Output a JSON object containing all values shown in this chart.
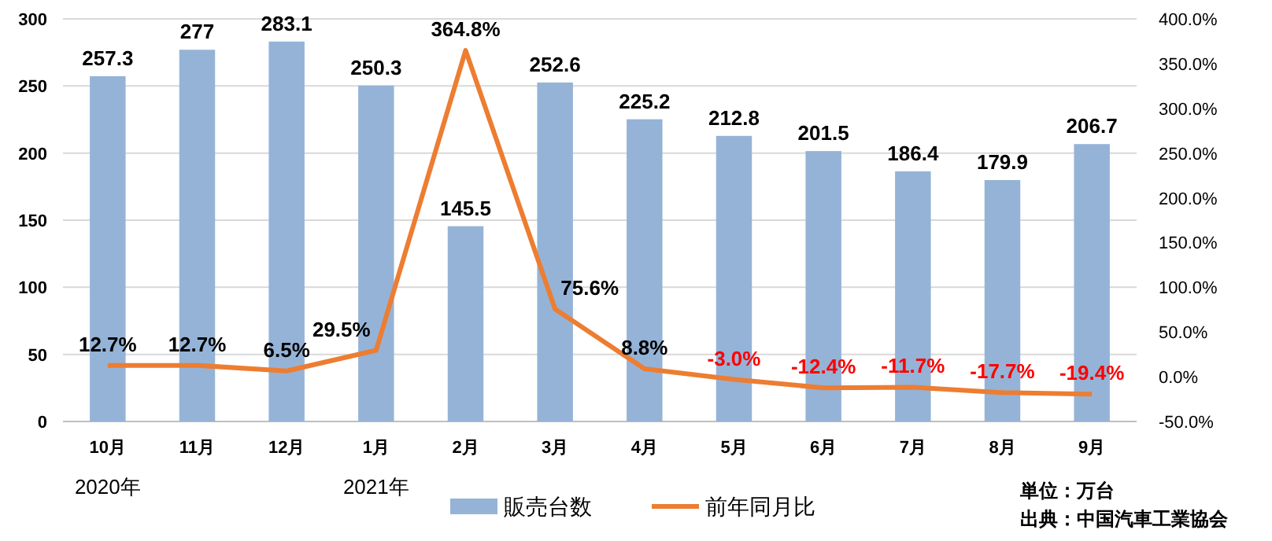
{
  "chart_data": {
    "type": "bar",
    "categories": [
      "10月",
      "11月",
      "12月",
      "1月",
      "2月",
      "3月",
      "4月",
      "5月",
      "6月",
      "7月",
      "8月",
      "9月"
    ],
    "series": [
      {
        "name": "販売台数",
        "color": "#95b3d7",
        "values": [
          257.3,
          277,
          283.1,
          250.3,
          145.5,
          252.6,
          225.2,
          212.8,
          201.5,
          186.4,
          179.9,
          206.7
        ],
        "value_labels": [
          "257.3",
          "277",
          "283.1",
          "250.3",
          "145.5",
          "252.6",
          "225.2",
          "212.8",
          "201.5",
          "186.4",
          "179.9",
          "206.7"
        ]
      },
      {
        "name": "前年同月比",
        "type": "line",
        "axis": "y2",
        "color": "#ed7d31",
        "values": [
          12.7,
          12.7,
          6.5,
          29.5,
          364.8,
          75.6,
          8.8,
          -3.0,
          -12.4,
          -11.7,
          -17.7,
          -19.4
        ],
        "value_labels": [
          "12.7%",
          "12.7%",
          "6.5%",
          "29.5%",
          "364.8%",
          "75.6%",
          "8.8%",
          "-3.0%",
          "-12.4%",
          "-11.7%",
          "-17.7%",
          "-19.4%"
        ]
      }
    ],
    "ylim": [
      0,
      300
    ],
    "yticks": [
      0,
      50,
      100,
      150,
      200,
      250,
      300
    ],
    "y2lim": [
      -50,
      400
    ],
    "y2ticks": [
      {
        "value": -50,
        "label": "-50.0%"
      },
      {
        "value": 0,
        "label": "0.0%"
      },
      {
        "value": 50,
        "label": "50.0%"
      },
      {
        "value": 100,
        "label": "100.0%"
      },
      {
        "value": 150,
        "label": "150.0%"
      },
      {
        "value": 200,
        "label": "200.0%"
      },
      {
        "value": 250,
        "label": "250.0%"
      },
      {
        "value": 300,
        "label": "300.0%"
      },
      {
        "value": 350,
        "label": "350.0%"
      },
      {
        "value": 400,
        "label": "400.0%"
      }
    ],
    "grid": "y",
    "legend": "bottom",
    "marker": "none",
    "line_style": "solid",
    "annotations": [
      "2020年",
      "2021年",
      "単位：万台",
      "出典：中国汽車工業協会"
    ]
  }
}
